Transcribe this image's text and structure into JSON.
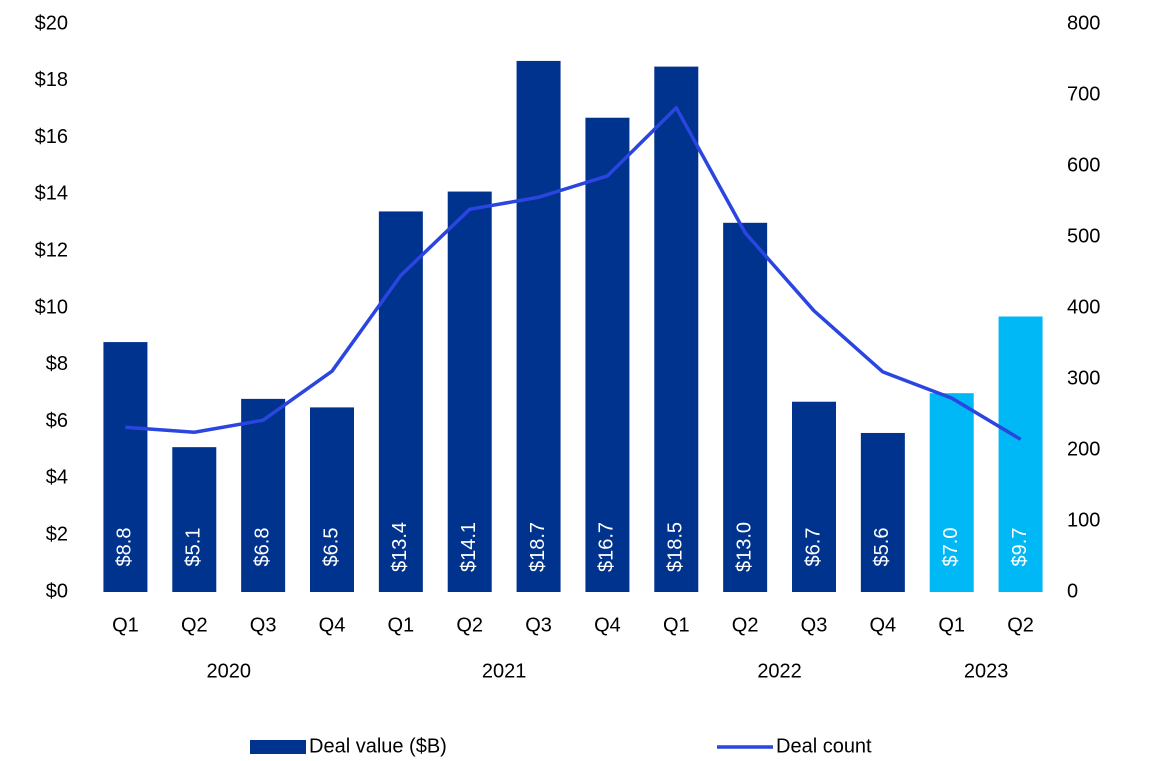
{
  "chart_data": {
    "type": "bar_line",
    "categories": [
      "Q1",
      "Q2",
      "Q3",
      "Q4",
      "Q1",
      "Q2",
      "Q3",
      "Q4",
      "Q1",
      "Q2",
      "Q3",
      "Q4",
      "Q1",
      "Q2"
    ],
    "groups": [
      {
        "name": "2020",
        "span": 4
      },
      {
        "name": "2021",
        "span": 4
      },
      {
        "name": "2022",
        "span": 4
      },
      {
        "name": "2023",
        "span": 2
      }
    ],
    "series": [
      {
        "name": "Deal value ($B)",
        "type": "bar",
        "color": "#00338d",
        "colors": [
          "#00338d",
          "#00338d",
          "#00338d",
          "#00338d",
          "#00338d",
          "#00338d",
          "#00338d",
          "#00338d",
          "#00338d",
          "#00338d",
          "#00338d",
          "#00338d",
          "#00b8f5",
          "#00b8f5"
        ],
        "values": [
          8.8,
          5.1,
          6.8,
          6.5,
          13.4,
          14.1,
          18.7,
          16.7,
          18.5,
          13.0,
          6.7,
          5.6,
          7.0,
          9.7
        ],
        "value_labels": [
          "$8.8",
          "$5.1",
          "$6.8",
          "$6.5",
          "$13.4",
          "$14.1",
          "$18.7",
          "$16.7",
          "$18.5",
          "$13.0",
          "$6.7",
          "$5.6",
          "$7.0",
          "$9.7"
        ]
      },
      {
        "name": "Deal count",
        "type": "line",
        "axis": "y2",
        "color": "#2a45e0",
        "values": [
          232,
          225,
          242,
          311,
          446,
          539,
          556,
          586,
          682,
          506,
          396,
          310,
          273,
          215
        ]
      }
    ],
    "ylim": [
      0,
      20
    ],
    "yticks": [
      {
        "value": 0,
        "label": "$0"
      },
      {
        "value": 2,
        "label": "$2"
      },
      {
        "value": 4,
        "label": "$4"
      },
      {
        "value": 6,
        "label": "$6"
      },
      {
        "value": 8,
        "label": "$8"
      },
      {
        "value": 10,
        "label": "$10"
      },
      {
        "value": 12,
        "label": "$12"
      },
      {
        "value": 14,
        "label": "$14"
      },
      {
        "value": 16,
        "label": "$16"
      },
      {
        "value": 18,
        "label": "$18"
      },
      {
        "value": 20,
        "label": "$20"
      }
    ],
    "y2lim": [
      0,
      800
    ],
    "y2ticks": [
      0,
      100,
      200,
      300,
      400,
      500,
      600,
      700,
      800
    ],
    "grid": false,
    "legend": "bottom"
  }
}
